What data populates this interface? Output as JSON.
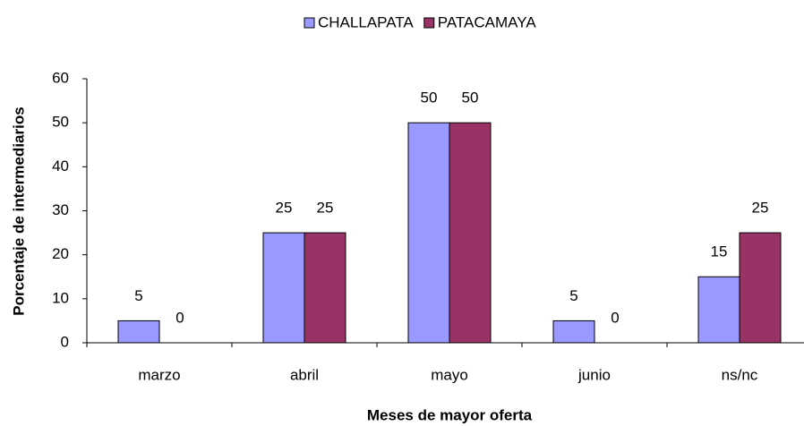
{
  "chart_data": {
    "type": "bar",
    "x_label": "Meses de mayor oferta",
    "y_label": "Porcentaje de intermediarios",
    "categories": [
      "marzo",
      "abril",
      "mayo",
      "junio",
      "ns/nc"
    ],
    "series": [
      {
        "name": "CHALLAPATA",
        "color": "#9999ff",
        "values": [
          5,
          25,
          50,
          5,
          15
        ]
      },
      {
        "name": "PATACAMAYA",
        "color": "#993366",
        "values": [
          0,
          25,
          50,
          0,
          25
        ]
      }
    ],
    "ylim": [
      0,
      60
    ],
    "yticks": [
      0,
      10,
      20,
      30,
      40,
      50,
      60
    ],
    "legend": "top",
    "grid": false
  }
}
